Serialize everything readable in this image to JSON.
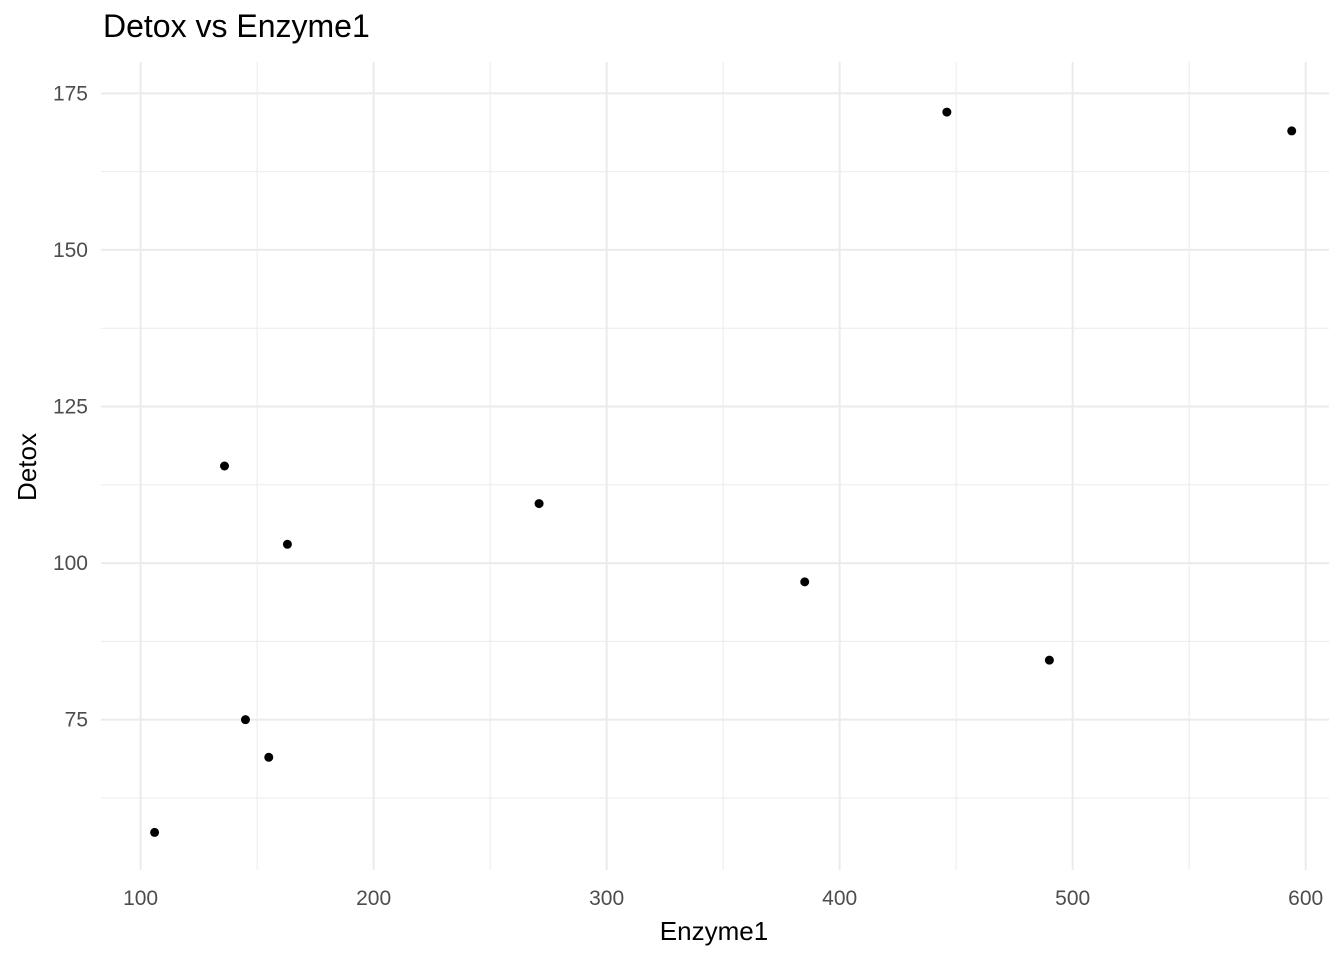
{
  "chart_data": {
    "type": "scatter",
    "title": "Detox vs Enzyme1",
    "xlabel": "Enzyme1",
    "ylabel": "Detox",
    "xlim": [
      83,
      610
    ],
    "ylim": [
      51,
      180
    ],
    "x_ticks": [
      100,
      200,
      300,
      400,
      500,
      600
    ],
    "y_ticks": [
      75,
      100,
      125,
      150,
      175
    ],
    "grid": true,
    "legend": "none",
    "point_color": "#000000",
    "grid_color": "#ebebeb",
    "points": [
      {
        "x": 106,
        "y": 57
      },
      {
        "x": 136,
        "y": 115.5
      },
      {
        "x": 145,
        "y": 75
      },
      {
        "x": 155,
        "y": 69
      },
      {
        "x": 163,
        "y": 103
      },
      {
        "x": 271,
        "y": 109.5
      },
      {
        "x": 385,
        "y": 97
      },
      {
        "x": 446,
        "y": 172
      },
      {
        "x": 490,
        "y": 84.5
      },
      {
        "x": 594,
        "y": 169
      }
    ]
  }
}
